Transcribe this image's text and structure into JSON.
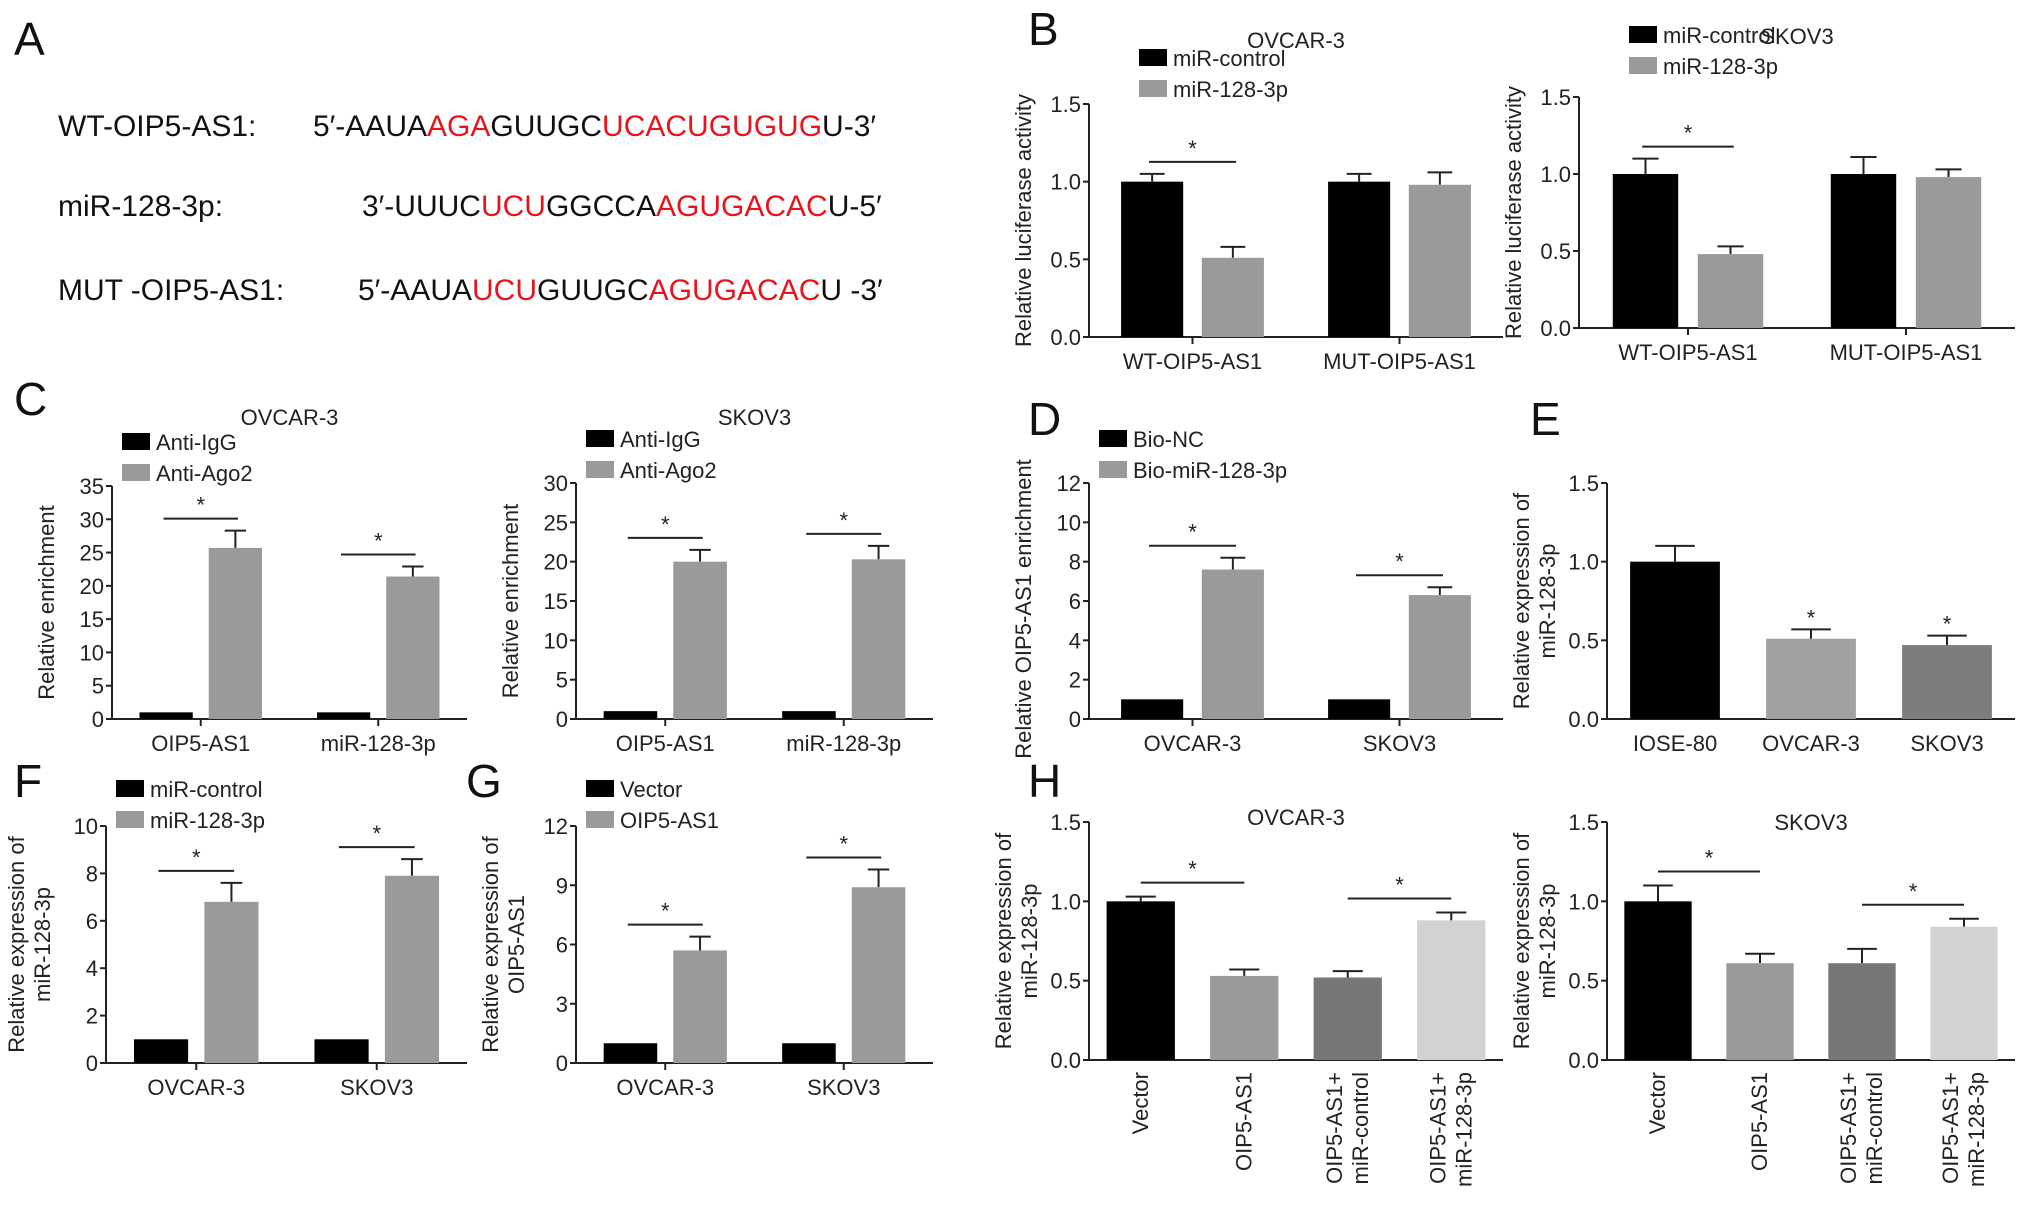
{
  "panel_labels": [
    "A",
    "B",
    "C",
    "D",
    "E",
    "F",
    "G",
    "H"
  ],
  "panel_a": {
    "rows": [
      {
        "label": "WT-OIP5-AS1:",
        "segments": [
          [
            "5′-AAUA",
            false
          ],
          [
            "AGA",
            true
          ],
          [
            "GUUGC",
            false
          ],
          [
            "UCACUGUGUG",
            true
          ],
          [
            "U-3′",
            false
          ]
        ]
      },
      {
        "label": "miR-128-3p:",
        "segments": [
          [
            "3′-UUUC",
            false
          ],
          [
            "UCU",
            true
          ],
          [
            "GGCCA",
            false
          ],
          [
            "AGUGACAC",
            true
          ],
          [
            "U-5′",
            false
          ]
        ]
      },
      {
        "label": "MUT -OIP5-AS1:",
        "segments": [
          [
            "5′-AAUA",
            false
          ],
          [
            "UCU",
            true
          ],
          [
            "GUUGC",
            false
          ],
          [
            "AGUGACAC",
            true
          ],
          [
            "U -3′",
            false
          ]
        ]
      }
    ],
    "highlight_color": "#e8141c"
  },
  "chart_data": [
    {
      "id": "B1",
      "type": "bar",
      "title": "OVCAR-3",
      "ylabel": "Relative luciferase activity",
      "ylim": [
        0,
        1.5
      ],
      "yticks": [
        "0.0",
        "0.5",
        "1.0",
        "1.5"
      ],
      "categories": [
        "WT-OIP5-AS1",
        "MUT-OIP5-AS1"
      ],
      "series": [
        {
          "name": "miR-control",
          "color": "#000000",
          "values": [
            1.0,
            1.0
          ],
          "errors": [
            0.05,
            0.05
          ]
        },
        {
          "name": "miR-128-3p",
          "color": "#9a9a9a",
          "values": [
            0.51,
            0.98
          ],
          "errors": [
            0.07,
            0.08
          ]
        }
      ],
      "significance": [
        {
          "group": 0,
          "label": "*"
        }
      ],
      "legend": "top-left"
    },
    {
      "id": "B2",
      "type": "bar",
      "title": "SKOV3",
      "ylabel": "Relative luciferase activity",
      "ylim": [
        0,
        1.5
      ],
      "yticks": [
        "0.0",
        "0.5",
        "1.0",
        "1.5"
      ],
      "categories": [
        "WT-OIP5-AS1",
        "MUT-OIP5-AS1"
      ],
      "series": [
        {
          "name": "miR-control",
          "color": "#000000",
          "values": [
            1.0,
            1.0
          ],
          "errors": [
            0.1,
            0.11
          ]
        },
        {
          "name": "miR-128-3p",
          "color": "#9a9a9a",
          "values": [
            0.48,
            0.98
          ],
          "errors": [
            0.05,
            0.05
          ]
        }
      ],
      "significance": [
        {
          "group": 0,
          "label": "*"
        }
      ],
      "legend": "top-left"
    },
    {
      "id": "C1",
      "type": "bar",
      "title": "OVCAR-3",
      "ylabel": "Relative enrichment",
      "ylim": [
        0,
        35
      ],
      "yticks": [
        "0",
        "5",
        "10",
        "15",
        "20",
        "25",
        "30",
        "35"
      ],
      "categories": [
        "OIP5-AS1",
        "miR-128-3p"
      ],
      "series": [
        {
          "name": "Anti-IgG",
          "color": "#000000",
          "values": [
            1,
            1
          ],
          "errors": [
            0,
            0
          ]
        },
        {
          "name": "Anti-Ago2",
          "color": "#9a9a9a",
          "values": [
            25.7,
            21.4
          ],
          "errors": [
            2.6,
            1.5
          ]
        }
      ],
      "significance": [
        {
          "group": 0,
          "label": "*"
        },
        {
          "group": 1,
          "label": "*"
        }
      ],
      "legend": "top-left"
    },
    {
      "id": "C2",
      "type": "bar",
      "title": "SKOV3",
      "ylabel": "Relative enrichment",
      "ylim": [
        0,
        30
      ],
      "yticks": [
        "0",
        "5",
        "10",
        "15",
        "20",
        "25",
        "30"
      ],
      "categories": [
        "OIP5-AS1",
        "miR-128-3p"
      ],
      "series": [
        {
          "name": "Anti-IgG",
          "color": "#000000",
          "values": [
            1,
            1
          ],
          "errors": [
            0,
            0
          ]
        },
        {
          "name": "Anti-Ago2",
          "color": "#9a9a9a",
          "values": [
            20.0,
            20.3
          ],
          "errors": [
            1.5,
            1.7
          ]
        }
      ],
      "significance": [
        {
          "group": 0,
          "label": "*"
        },
        {
          "group": 1,
          "label": "*"
        }
      ],
      "legend": "top-left"
    },
    {
      "id": "D",
      "type": "bar",
      "title": "",
      "ylabel": "Relative OIP5-AS1 enrichment",
      "ylim": [
        0,
        12
      ],
      "yticks": [
        "0",
        "2",
        "4",
        "6",
        "8",
        "10",
        "12"
      ],
      "categories": [
        "OVCAR-3",
        "SKOV3"
      ],
      "series": [
        {
          "name": "Bio-NC",
          "color": "#000000",
          "values": [
            1,
            1
          ],
          "errors": [
            0,
            0
          ]
        },
        {
          "name": "Bio-miR-128-3p",
          "color": "#9a9a9a",
          "values": [
            7.6,
            6.3
          ],
          "errors": [
            0.6,
            0.4
          ]
        }
      ],
      "significance": [
        {
          "group": 0,
          "label": "*"
        },
        {
          "group": 1,
          "label": "*"
        }
      ],
      "legend": "top-left"
    },
    {
      "id": "E",
      "type": "bar",
      "title": "",
      "ylabel": "Relative expression of miR-128-3p",
      "ylim": [
        0,
        1.5
      ],
      "yticks": [
        "0.0",
        "0.5",
        "1.0",
        "1.5"
      ],
      "categories": [
        "IOSE-80",
        "OVCAR-3",
        "SKOV3"
      ],
      "values": [
        1.0,
        0.51,
        0.47
      ],
      "errors": [
        0.1,
        0.06,
        0.06
      ],
      "colors": [
        "#000000",
        "#a0a0a0",
        "#7d7d7d"
      ],
      "bar_stars": [
        "",
        "*",
        "*"
      ]
    },
    {
      "id": "F",
      "type": "bar",
      "title": "",
      "ylabel": "Relative expression of miR-128-3p",
      "ylim": [
        0,
        10
      ],
      "yticks": [
        "0",
        "2",
        "4",
        "6",
        "8",
        "10"
      ],
      "categories": [
        "OVCAR-3",
        "SKOV3"
      ],
      "series": [
        {
          "name": "miR-control",
          "color": "#000000",
          "values": [
            1,
            1
          ],
          "errors": [
            0,
            0
          ]
        },
        {
          "name": "miR-128-3p",
          "color": "#9a9a9a",
          "values": [
            6.8,
            7.9
          ],
          "errors": [
            0.8,
            0.7
          ]
        }
      ],
      "significance": [
        {
          "group": 0,
          "label": "*"
        },
        {
          "group": 1,
          "label": "*"
        }
      ],
      "legend": "top-left"
    },
    {
      "id": "G",
      "type": "bar",
      "title": "",
      "ylabel": "Relative expression of OIP5-AS1",
      "ylim": [
        0,
        12
      ],
      "yticks": [
        "0",
        "3",
        "6",
        "9",
        "12"
      ],
      "categories": [
        "OVCAR-3",
        "SKOV3"
      ],
      "series": [
        {
          "name": "Vector",
          "color": "#000000",
          "values": [
            1,
            1
          ],
          "errors": [
            0,
            0
          ]
        },
        {
          "name": "OIP5-AS1",
          "color": "#9a9a9a",
          "values": [
            5.7,
            8.9
          ],
          "errors": [
            0.7,
            0.9
          ]
        }
      ],
      "significance": [
        {
          "group": 0,
          "label": "*"
        },
        {
          "group": 1,
          "label": "*"
        }
      ],
      "legend": "top-left"
    },
    {
      "id": "H1",
      "type": "bar",
      "title": "OVCAR-3",
      "ylabel": "Relative expression of miR-128-3p",
      "ylim": [
        0,
        1.5
      ],
      "yticks": [
        "0.0",
        "0.5",
        "1.0",
        "1.5"
      ],
      "categories": [
        "Vector",
        "OIP5-AS1",
        "OIP5-AS1+ miR-control",
        "OIP5-AS1+ miR-128-3p"
      ],
      "values": [
        1.0,
        0.53,
        0.52,
        0.88
      ],
      "errors": [
        0.03,
        0.04,
        0.04,
        0.05
      ],
      "colors": [
        "#000000",
        "#9a9a9a",
        "#777777",
        "#d2d2d2"
      ],
      "pair_stars": [
        [
          0,
          1
        ],
        [
          2,
          3
        ]
      ]
    },
    {
      "id": "H2",
      "type": "bar",
      "title": "SKOV3",
      "ylabel": "Relative expression of miR-128-3p",
      "ylim": [
        0,
        1.5
      ],
      "yticks": [
        "0.0",
        "0.5",
        "1.0",
        "1.5"
      ],
      "categories": [
        "Vector",
        "OIP5-AS1",
        "OIP5-AS1+ miR-control",
        "OIP5-AS1+ miR-128-3p"
      ],
      "values": [
        1.0,
        0.61,
        0.61,
        0.84
      ],
      "errors": [
        0.1,
        0.06,
        0.09,
        0.05
      ],
      "colors": [
        "#000000",
        "#9a9a9a",
        "#777777",
        "#d2d2d2"
      ],
      "pair_stars": [
        [
          0,
          1
        ],
        [
          2,
          3
        ]
      ]
    }
  ]
}
